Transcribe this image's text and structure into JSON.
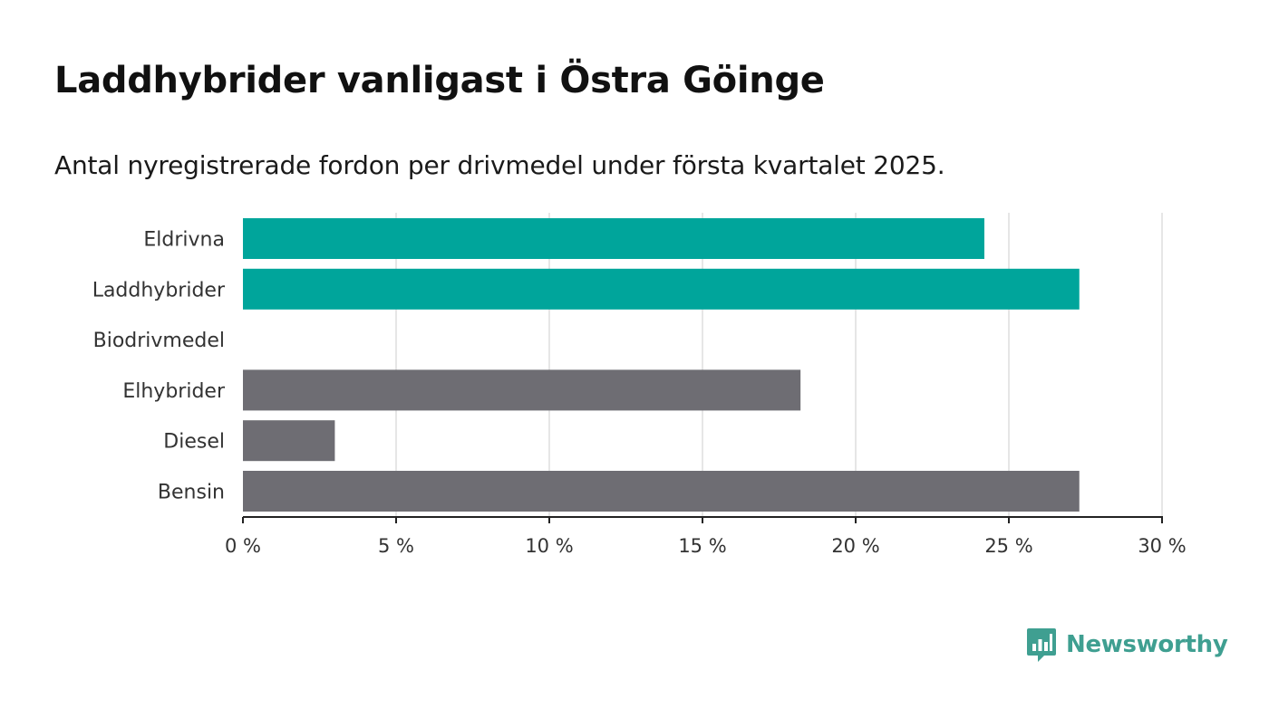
{
  "title": "Laddhybrider vanligast i Östra Göinge",
  "subtitle": "Antal nyregistrerade fordon per drivmedel under första kvartalet 2025.",
  "brand": {
    "name": "Newsworthy",
    "icon": "newsworthy-logo-icon",
    "color": "#3f9f91"
  },
  "chart_data": {
    "type": "bar",
    "orientation": "horizontal",
    "title": "Laddhybrider vanligast i Östra Göinge",
    "subtitle": "Antal nyregistrerade fordon per drivmedel under första kvartalet 2025.",
    "xlabel": "",
    "ylabel": "",
    "categories": [
      "Eldrivna",
      "Laddhybrider",
      "Biodrivmedel",
      "Elhybrider",
      "Diesel",
      "Bensin"
    ],
    "values": [
      24.2,
      27.3,
      0,
      18.2,
      3.0,
      27.3
    ],
    "bar_colors": [
      "#00a59b",
      "#00a59b",
      "#00a59b",
      "#6e6d73",
      "#6e6d73",
      "#6e6d73"
    ],
    "xlim": [
      0,
      30
    ],
    "xticks": [
      0,
      5,
      10,
      15,
      20,
      25,
      30
    ],
    "xtick_labels": [
      "0 %",
      "5 %",
      "10 %",
      "15 %",
      "20 %",
      "25 %",
      "30 %"
    ],
    "grid": "vertical",
    "legend": "none"
  }
}
